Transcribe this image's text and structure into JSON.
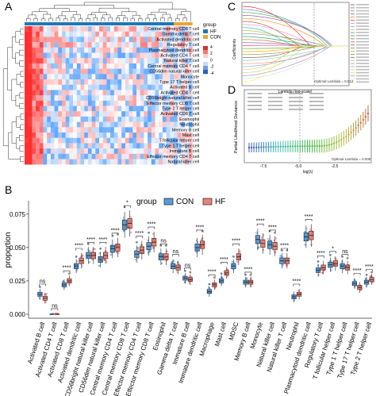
{
  "panels": {
    "a": "A",
    "b": "B",
    "c": "C",
    "d": "D"
  },
  "heatmap": {
    "legend_title": "group",
    "groups": [
      {
        "name": "HF",
        "color": "#1f77b4"
      },
      {
        "name": "CON",
        "color": "#e8a43a"
      }
    ],
    "scale_ticks": [
      "4",
      "2",
      "0",
      "-2",
      "-4"
    ],
    "row_labels": [
      "Central memory CD8 T cell",
      "Gamma delta T cell",
      "Activated dendritic cell",
      "Regulatory T cell",
      "Plasmacytoid dendritic cell",
      "Activated CD4 T cell",
      "Natural killer T cell",
      "Central memory CD4 T cell",
      "CD56dim natural killer cell",
      "Monocyte",
      "Type 17 T helper cell",
      "Activated B cell",
      "Activated CD4 T cell",
      "CD56bright natural killer cell",
      "Effector memory CD8 T cell",
      "Type 2 T helper cell",
      "Activated CD8 T cell",
      "Eosinophil",
      "Neutrophil",
      "Memory B cell",
      "Mast cell",
      "T follicular helper cell",
      "Type 1 T helper cell",
      "Immature B cell",
      "Effector memory CD4 T cell",
      "Natural killer cell"
    ]
  },
  "lasso_path": {
    "ylabel": "Coefficients",
    "xlabel": "Lambda (log-scale)",
    "annotation": "Optimal Lambda = 0.012"
  },
  "cv": {
    "ylabel": "Partial Likelihood Deviance",
    "xlabel": "log(λ)",
    "x_ticks": [
      "-7.5",
      "-5.0",
      "-2.5"
    ],
    "annotation": "Optimal Lambda = 0.008"
  },
  "chart_data": {
    "type": "box",
    "legend_title": "group",
    "legend": [
      {
        "name": "CON",
        "color": "#5b9bd5"
      },
      {
        "name": "HF",
        "color": "#e8837a"
      }
    ],
    "ylabel": "proportion",
    "ylim": [
      0,
      0.08
    ],
    "y_ticks": [
      "0.000",
      "0.025",
      "0.050",
      "0.075"
    ],
    "categories": [
      "Activated B cell",
      "Activated CD4 T cell",
      "Activated CD8 T cell",
      "Activated dendritic cell",
      "CD56bright natural killer cell",
      "CD56dim natural killer cell",
      "Central memory CD4 T cell",
      "Central memory CD8 T cell",
      "Effector memory CD4 T cell",
      "Effector memory CD8 T cell",
      "Eosinophil",
      "Gamma delta T cell",
      "Immature B cell",
      "Immature dendritic cell",
      "Macrophage",
      "Mast cell",
      "MDSC",
      "Memory B cell",
      "Monocyte",
      "Natural killer cell",
      "Natural killer T cell",
      "Neutrophil",
      "Plasmacytoid dendritic cell",
      "Regulatory T cell",
      "T follicular helper cell",
      "Type 1 T helper cell",
      "Type 17 T helper cell",
      "Type 2 T helper cell"
    ],
    "significance": [
      "ns",
      "ns",
      "****",
      "****",
      "****",
      "****",
      "****",
      "*",
      "****",
      "****",
      "ns",
      "ns",
      "ns",
      "****",
      "****",
      "****",
      "****",
      "****",
      "****",
      "****",
      "****",
      "****",
      "****",
      "****",
      "*",
      "ns",
      "****",
      "****"
    ],
    "series": [
      {
        "name": "CON",
        "medians": [
          0.015,
          0.0,
          0.022,
          0.036,
          0.044,
          0.041,
          0.049,
          0.067,
          0.045,
          0.051,
          0.043,
          0.036,
          0.027,
          0.05,
          0.017,
          0.025,
          0.036,
          0.024,
          0.056,
          0.052,
          0.04,
          0.013,
          0.058,
          0.033,
          0.037,
          0.036,
          0.023,
          0.024
        ]
      },
      {
        "name": "HF",
        "medians": [
          0.012,
          0.0,
          0.025,
          0.04,
          0.044,
          0.044,
          0.05,
          0.068,
          0.048,
          0.054,
          0.043,
          0.035,
          0.026,
          0.052,
          0.022,
          0.031,
          0.043,
          0.024,
          0.053,
          0.051,
          0.04,
          0.015,
          0.059,
          0.035,
          0.038,
          0.035,
          0.02,
          0.026
        ]
      }
    ]
  }
}
